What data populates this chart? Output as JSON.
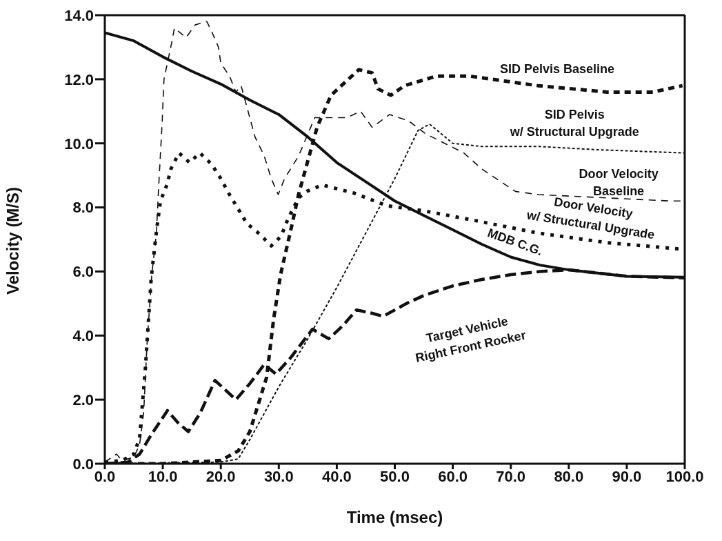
{
  "chart_data": {
    "type": "line",
    "xlabel": "Time (msec)",
    "ylabel": "Velocity (M/S)",
    "xlim": [
      0,
      100
    ],
    "ylim": [
      0,
      14
    ],
    "xticks": [
      {
        "value": 0,
        "label": "0.0"
      },
      {
        "value": 10,
        "label": "10.0"
      },
      {
        "value": 20,
        "label": "20.0"
      },
      {
        "value": 30,
        "label": "30.0"
      },
      {
        "value": 40,
        "label": "40.0"
      },
      {
        "value": 50,
        "label": "50.0"
      },
      {
        "value": 60,
        "label": "60.0"
      },
      {
        "value": 70,
        "label": "70.0"
      },
      {
        "value": 80,
        "label": "80.0"
      },
      {
        "value": 90,
        "label": "90.0"
      },
      {
        "value": 100,
        "label": "100.0"
      }
    ],
    "yticks": [
      {
        "value": 0,
        "label": "0.0"
      },
      {
        "value": 2,
        "label": "2.0"
      },
      {
        "value": 4,
        "label": "4.0"
      },
      {
        "value": 6,
        "label": "6.0"
      },
      {
        "value": 8,
        "label": "8.0"
      },
      {
        "value": 10,
        "label": "10.0"
      },
      {
        "value": 12,
        "label": "12.0"
      },
      {
        "value": 14,
        "label": "14.0"
      }
    ],
    "grid": false,
    "marker": "none",
    "series": [
      {
        "name": "MDB C.G.",
        "color": "#111111",
        "line_style": "solid",
        "x": [
          0,
          5,
          10,
          15,
          20,
          25,
          30,
          35,
          40,
          45,
          50,
          55,
          60,
          65,
          70,
          75,
          80,
          90,
          100
        ],
        "values": [
          13.45,
          13.2,
          12.7,
          12.25,
          11.85,
          11.35,
          10.9,
          10.2,
          9.4,
          8.8,
          8.2,
          7.75,
          7.3,
          6.85,
          6.45,
          6.2,
          6.05,
          5.85,
          5.82
        ]
      },
      {
        "name": "SID Pelvis Baseline",
        "color": "#111111",
        "line_style": "dashed",
        "x": [
          0,
          10,
          20,
          23,
          25,
          27.9,
          29.1,
          30.3,
          32.2,
          33.4,
          36.6,
          39,
          43.8,
          46.1,
          47.1,
          49.3,
          51.7,
          57.2,
          60.4,
          62.8,
          74.7,
          86.6,
          94.5,
          99.6
        ],
        "values": [
          0,
          0,
          0.1,
          0.4,
          1.0,
          2.7,
          4.5,
          5.9,
          7.4,
          8.4,
          10.5,
          11.5,
          12.3,
          12.2,
          11.7,
          11.5,
          11.8,
          12.1,
          12.1,
          12.1,
          11.8,
          11.6,
          11.6,
          11.8
        ]
      },
      {
        "name": "SID Pelvis\nw/ Structural Upgrade",
        "color": "#111111",
        "line_style": "dashed",
        "x": [
          0,
          20,
          23,
          25,
          30,
          35,
          40,
          45,
          50,
          54,
          56,
          58,
          60,
          65,
          75,
          85,
          100
        ],
        "values": [
          0,
          0.05,
          0.15,
          0.75,
          2.4,
          3.9,
          5.5,
          7.2,
          8.9,
          10.4,
          10.6,
          10.3,
          10.0,
          9.9,
          9.9,
          9.8,
          9.7
        ]
      },
      {
        "name": "Door Velocity\nBaseline",
        "color": "#111111",
        "line_style": "dashed",
        "x": [
          0,
          2,
          3,
          5,
          6,
          6.7,
          7.3,
          8.1,
          8.9,
          9.3,
          9.9,
          10.2,
          11.6,
          12,
          14,
          15.6,
          17.6,
          18.4,
          19.6,
          20,
          21.5,
          22.6,
          23.5,
          25,
          25.9,
          27.5,
          28.7,
          29.9,
          31,
          33.4,
          36.2,
          39.4,
          41.7,
          44.1,
          46.1,
          49.1,
          52.4,
          55.3,
          61.9,
          65,
          70.8,
          74.7,
          97.6,
          100
        ],
        "values": [
          0.05,
          0.3,
          0.1,
          0.2,
          0.6,
          1.6,
          3.8,
          5.9,
          7.2,
          8.7,
          10.7,
          12.0,
          13.2,
          13.6,
          13.3,
          13.7,
          13.8,
          13.5,
          13.0,
          12.5,
          12.1,
          11.6,
          11.8,
          10.8,
          10.2,
          9.6,
          8.9,
          8.4,
          8.9,
          9.6,
          10.8,
          10.8,
          10.8,
          11.0,
          10.5,
          10.9,
          10.7,
          10.3,
          9.7,
          9.2,
          8.5,
          8.4,
          8.2,
          8.2
        ]
      },
      {
        "name": "Door Velocity\nw/ Structural Upgrade",
        "color": "#111111",
        "line_style": "dotted",
        "x": [
          0,
          3,
          5,
          6,
          7,
          8,
          9,
          9.6,
          10.7,
          11.4,
          12.8,
          14.6,
          16.4,
          18.4,
          20,
          21.5,
          23,
          24.5,
          26.8,
          28.7,
          30.4,
          31.6,
          33.4,
          34.8,
          37.5,
          42.9,
          48.7,
          54.8,
          63.6,
          74.7,
          86.6,
          99.3
        ],
        "values": [
          0.05,
          0.1,
          0.3,
          0.8,
          3.0,
          5.8,
          7.4,
          8.2,
          8.7,
          9.2,
          9.7,
          9.4,
          9.7,
          9.35,
          8.9,
          8.4,
          7.95,
          7.5,
          7.15,
          6.8,
          7.1,
          7.65,
          8.3,
          8.5,
          8.7,
          8.45,
          8.05,
          7.9,
          7.6,
          7.2,
          6.9,
          6.7
        ]
      },
      {
        "name": "Target Vehicle\nRight Front Rocker",
        "color": "#111111",
        "line_style": "dashed",
        "x": [
          0,
          4,
          6,
          8,
          10.8,
          12.5,
          14.4,
          16.5,
          19,
          22.6,
          25,
          27.5,
          29.5,
          32,
          35.8,
          38.6,
          41,
          43.4,
          46,
          48,
          52,
          55,
          60,
          65,
          70,
          75,
          80,
          85,
          90,
          100
        ],
        "values": [
          0,
          0.05,
          0.3,
          0.9,
          1.66,
          1.3,
          1.0,
          1.6,
          2.6,
          2.0,
          2.5,
          3.1,
          2.8,
          3.3,
          4.2,
          3.9,
          4.3,
          4.8,
          4.7,
          4.6,
          5.0,
          5.25,
          5.55,
          5.75,
          5.9,
          6.0,
          6.05,
          5.95,
          5.85,
          5.8
        ]
      }
    ]
  }
}
